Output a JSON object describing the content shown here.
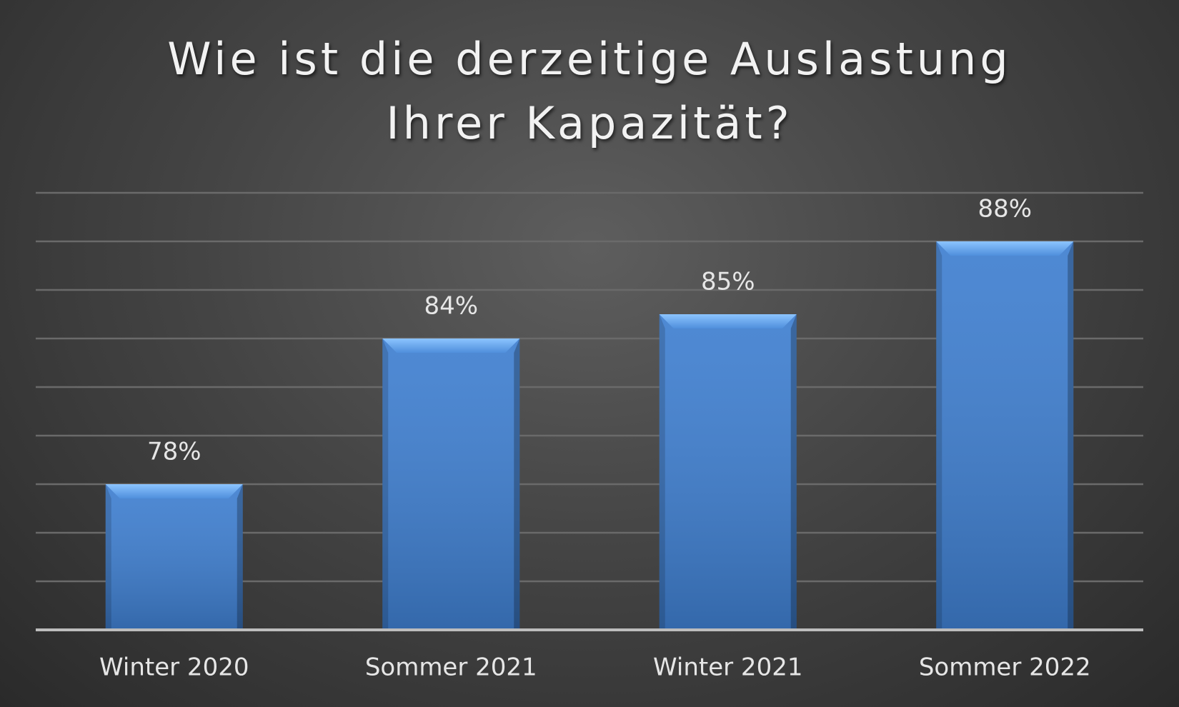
{
  "chart_data": {
    "type": "bar",
    "title": "Wie ist die derzeitige Auslastung Ihrer Kapazität?",
    "categories": [
      "Winter 2020",
      "Sommer 2021",
      "Winter 2021",
      "Sommer 2022"
    ],
    "values": [
      78,
      84,
      85,
      88
    ],
    "value_labels": [
      "78%",
      "84%",
      "85%",
      "88%"
    ],
    "color": "#3f7fd0",
    "ylim": [
      72,
      90
    ],
    "yticks": [
      72,
      74,
      76,
      78,
      80,
      82,
      84,
      86,
      88,
      90
    ],
    "grid": true
  }
}
